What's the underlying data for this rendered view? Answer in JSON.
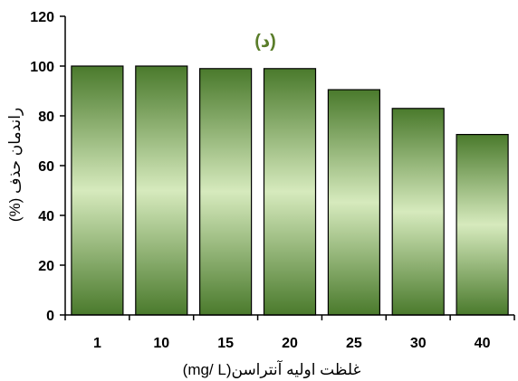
{
  "chart_data": {
    "type": "bar",
    "panel_label": "(د)",
    "categories": [
      "1",
      "10",
      "15",
      "20",
      "25",
      "30",
      "40"
    ],
    "values": [
      100,
      100,
      99,
      99,
      90.5,
      83,
      72.5
    ],
    "xlabel": "(mg/ L)غلظت اولیه آنتراسن",
    "ylabel": "(%) راندمان حذف",
    "ylim": [
      0,
      120
    ],
    "yticks": [
      0,
      20,
      40,
      60,
      80,
      100,
      120
    ],
    "grid": false,
    "legend": "none"
  },
  "colors": {
    "bar_dark": "#4a7a2c",
    "bar_mid": "#7cb548",
    "bar_light": "#d6eabd",
    "bar_edge": "#000000",
    "panel_label": "#5a7d2a",
    "axis": "#000000"
  }
}
